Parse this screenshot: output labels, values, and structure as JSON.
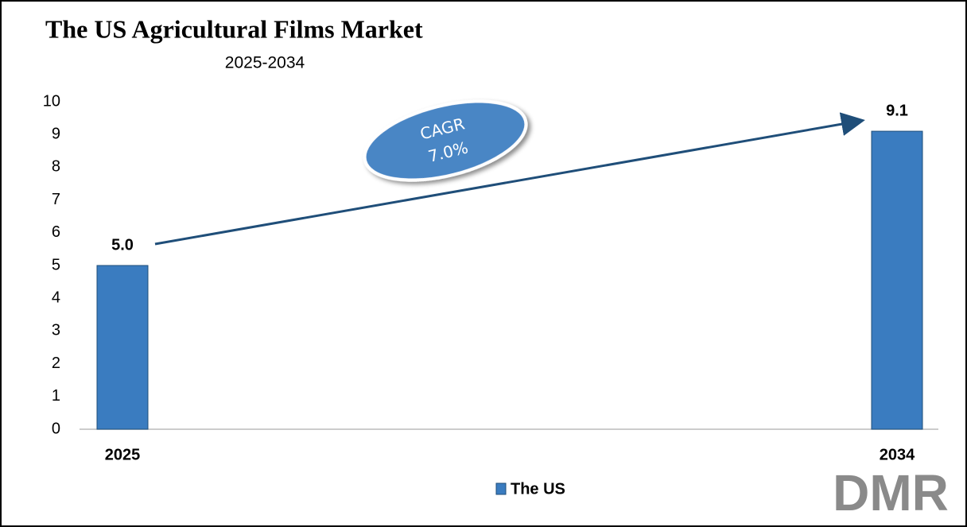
{
  "chart_data": {
    "type": "bar",
    "title": "The US Agricultural Films Market",
    "subtitle": "2025-2034",
    "categories": [
      "2025",
      "2034"
    ],
    "series": [
      {
        "name": "The US",
        "color": "#3a7cc0",
        "values": [
          5.0,
          9.1
        ],
        "value_labels": [
          "5.0",
          "9.1"
        ]
      }
    ],
    "ylim": [
      0,
      10
    ],
    "yticks": [
      0,
      1,
      2,
      3,
      4,
      5,
      6,
      7,
      8,
      9,
      10
    ],
    "grid": false,
    "annotations": [
      "CAGR",
      "7.0%"
    ],
    "legend": "bottom"
  },
  "logo": "DMR"
}
